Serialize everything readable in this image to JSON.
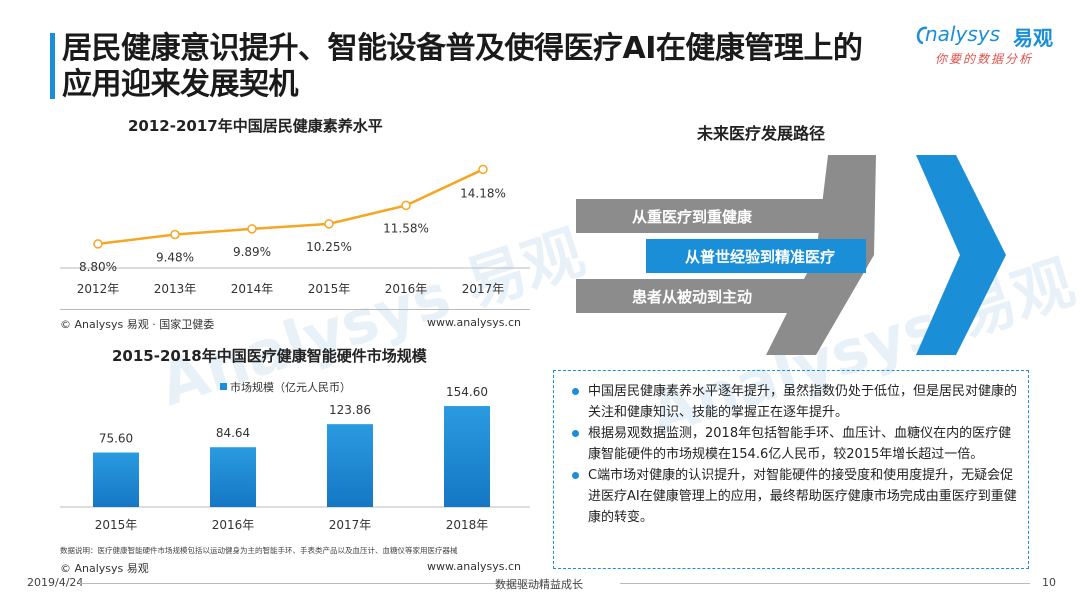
{
  "title": {
    "line1": "居民健康意识提升、智能设备普及使得医疗AI在健康管理上的",
    "line2": "应用迎来发展契机"
  },
  "logo": {
    "brand": "nalysys",
    "brand_cn": "易观",
    "tagline": "你要的数据分析"
  },
  "watermark": "Analysys 易观",
  "chart1_source": "© Analysys 易观 · 国家卫健委",
  "chart1_url": "www.analysys.cn",
  "chart2_legend": "市场规模（亿元人民币）",
  "chart2_note": "数据说明：医疗健康智能硬件市场规模包括以运动健身为主的智能手环、手表类产品以及血压计、血糖仪等家用医疗器械",
  "chart2_source": "© Analysys 易观",
  "chart2_url": "www.analysys.cn",
  "path": {
    "title": "未来医疗发展路径",
    "items": [
      "从重医疗到重健康",
      "从普世经验到精准医疗",
      "患者从被动到主动"
    ]
  },
  "bullets": [
    "中国居民健康素养水平逐年提升，虽然指数仍处于低位，但是居民对健康的关注和健康知识、技能的掌握正在逐年提升。",
    "根据易观数据监测，2018年包括智能手环、血压计、血糖仪在内的医疗健康智能硬件的市场规模在154.6亿人民币，较2015年增长超过一倍。",
    "C端市场对健康的认识提升，对智能硬件的接受度和使用度提升，无疑会促进医疗AI在健康管理上的应用，最终帮助医疗健康市场完成由重医疗到重健康的转变。"
  ],
  "footer": {
    "date": "2019/4/24",
    "center": "数据驱动精益成长",
    "page": "10"
  },
  "colors": {
    "accent": "#1a8fd7",
    "line": "#f5a623",
    "bar": "#1a8fd7",
    "arrow_gray": "#8c8c8c"
  },
  "chart_data": [
    {
      "type": "line",
      "title": "2012-2017年中国居民健康素养水平",
      "categories": [
        "2012年",
        "2013年",
        "2014年",
        "2015年",
        "2016年",
        "2017年"
      ],
      "values": [
        8.8,
        9.48,
        9.89,
        10.25,
        11.58,
        14.18
      ],
      "labels": [
        "8.80%",
        "9.48%",
        "9.89%",
        "10.25%",
        "11.58%",
        "14.18%"
      ],
      "ylim": [
        0,
        16
      ]
    },
    {
      "type": "bar",
      "title": "2015-2018年中国医疗健康智能硬件市场规模",
      "categories": [
        "2015年",
        "2016年",
        "2017年",
        "2018年"
      ],
      "values": [
        75.6,
        84.64,
        123.86,
        154.6
      ],
      "labels": [
        "75.60",
        "84.64",
        "123.86",
        "154.60"
      ],
      "ylim": [
        0,
        170
      ]
    }
  ]
}
